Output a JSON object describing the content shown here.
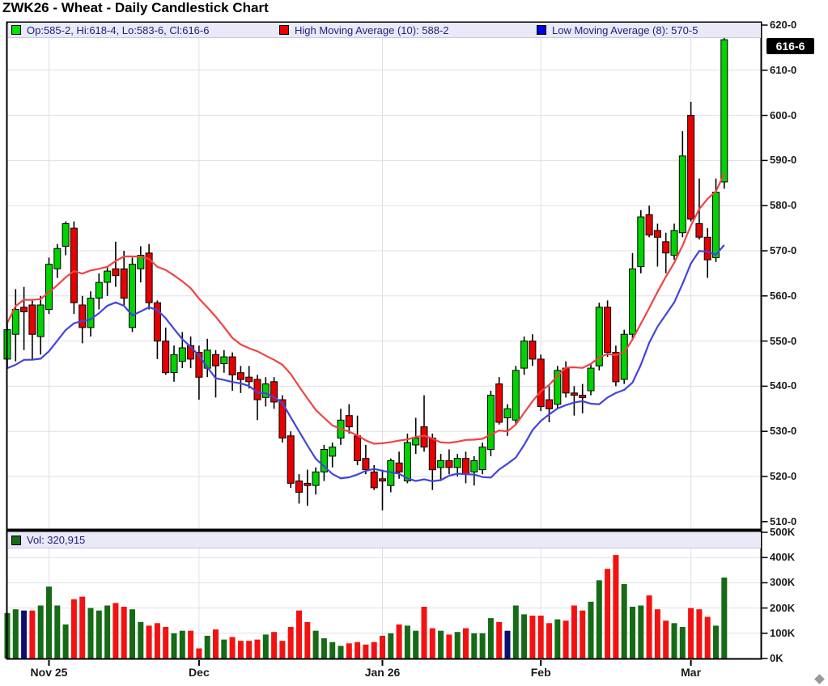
{
  "title": "ZWK26 - Wheat - Daily Candlestick Chart",
  "legend": {
    "ohlc": {
      "label": "Op:585-2, Hi:618-4, Lo:583-6, Cl:616-6",
      "color": "#00e000"
    },
    "high_ma": {
      "label": "High Moving Average (10): 588-2",
      "color": "#ee0000"
    },
    "low_ma": {
      "label": "Low Moving Average (8): 570-5",
      "color": "#0000dd"
    }
  },
  "volume_legend": {
    "label": "Vol: 320,915",
    "color": "#166b16"
  },
  "last_price_label": "616-6",
  "colors": {
    "candle_up": "#00d300",
    "candle_down": "#e60000",
    "candle_outline": "#000000",
    "vol_up": "#166b16",
    "vol_down": "#f31212",
    "vol_special": "#0d0d72",
    "ma_high": "#ef4444",
    "ma_low": "#4444dd",
    "grid": "#dfdfec",
    "frame": "#000000",
    "legend_bg": "#e9e9f8",
    "legend_text": "#21217a",
    "badge_bg": "#000000",
    "badge_text": "#ffffff",
    "axis_text": "#1a1a1a"
  },
  "chart_data": {
    "type": "candlestick",
    "instrument": "ZWK26 Wheat",
    "interval": "daily",
    "price_axis": {
      "min": 510,
      "max": 620,
      "step": 10,
      "labels": [
        "620-0",
        "610-0",
        "600-0",
        "590-0",
        "580-0",
        "570-0",
        "560-0",
        "550-0",
        "540-0",
        "530-0",
        "520-0",
        "510-0"
      ]
    },
    "volume_axis": {
      "max_k": 500,
      "step_k": 100,
      "labels": [
        "500K",
        "400K",
        "300K",
        "200K",
        "100K",
        "0K"
      ]
    },
    "x_axis": {
      "ticks": [
        {
          "label": "Nov 25",
          "index": 5
        },
        {
          "label": "Dec",
          "index": 23
        },
        {
          "label": "Jan 26",
          "index": 45
        },
        {
          "label": "Feb",
          "index": 64
        },
        {
          "label": "Mar",
          "index": 82
        }
      ]
    },
    "overlays": [
      {
        "name": "High Moving Average (10)",
        "source": "high",
        "period": 10,
        "value": "588-2"
      },
      {
        "name": "Low Moving Average (8)",
        "source": "low",
        "period": 8,
        "value": "570-5"
      }
    ],
    "last_candle": {
      "open": "585-2",
      "high": "618-4",
      "low": "583-6",
      "close": "616-6",
      "volume": 320915
    },
    "open": [
      546,
      551.5,
      557.5,
      558,
      551,
      557,
      566,
      571,
      575,
      558,
      553,
      559.5,
      563,
      566,
      566,
      553,
      566,
      569.5,
      558.5,
      550,
      543,
      545.5,
      549,
      547.5,
      544,
      547,
      545,
      546.5,
      543,
      542,
      541.5,
      537.5,
      541,
      537,
      529,
      519,
      518.5,
      518,
      521,
      524.5,
      528.5,
      533.5,
      529,
      524,
      521,
      519.5,
      518,
      523,
      519,
      527,
      531,
      528.5,
      522,
      523.5,
      522,
      524,
      521,
      521.5,
      526,
      540.5,
      533,
      532.5,
      544,
      550,
      546,
      537,
      536,
      544,
      538.5,
      538,
      539,
      544.5,
      557.5,
      547.5,
      541.5,
      551.5,
      566.5,
      578,
      574.5,
      572,
      569,
      574,
      600,
      576,
      573,
      568.5,
      585.25
    ],
    "high": [
      554,
      561.5,
      562,
      559,
      560,
      568.5,
      571.5,
      576.5,
      576.5,
      560,
      561,
      565,
      566.5,
      572,
      570,
      568.5,
      571,
      571.5,
      559,
      553,
      549,
      552,
      551,
      549,
      550.5,
      548,
      548,
      547.5,
      544.5,
      544.5,
      542.5,
      542,
      542,
      538,
      530,
      520.5,
      521.5,
      522,
      527,
      527.5,
      535,
      536,
      533.5,
      527,
      522.5,
      521.5,
      524,
      525.5,
      529.5,
      533,
      538,
      529.5,
      525,
      526,
      525,
      525.5,
      524.5,
      527.5,
      539,
      542,
      536,
      544.5,
      551,
      551.5,
      547,
      540,
      544.5,
      545.5,
      540,
      540.5,
      545,
      558.5,
      559,
      549,
      552.5,
      569.5,
      579,
      580,
      576,
      574,
      576,
      596.5,
      603,
      586,
      575,
      586,
      618.5
    ],
    "low": [
      544,
      545.5,
      548,
      546,
      547,
      556,
      564,
      569,
      556,
      549.5,
      551,
      557,
      560,
      562,
      558,
      552,
      563,
      557,
      546,
      542.5,
      541,
      544,
      544,
      537,
      542,
      537.5,
      543,
      539,
      538.5,
      539.5,
      532.5,
      535.5,
      535,
      527.5,
      517.5,
      514,
      513.5,
      516,
      519,
      522,
      527,
      529.5,
      522.5,
      520.5,
      517,
      512.5,
      516.5,
      519.5,
      518.5,
      525,
      525.5,
      517,
      519,
      520.5,
      520,
      518.5,
      518,
      520.5,
      524.5,
      531.5,
      529,
      531.5,
      542.5,
      544.5,
      534.5,
      532,
      535,
      537.5,
      533.5,
      534,
      538,
      543.5,
      546.5,
      540,
      540.5,
      550.5,
      565,
      573,
      566.5,
      565,
      568,
      573,
      576.5,
      572.5,
      564,
      567.5,
      583.75
    ],
    "close": [
      552.5,
      557,
      556.5,
      551.5,
      558,
      567,
      570.5,
      576,
      558.5,
      553,
      559.5,
      563,
      565.5,
      564.5,
      559.5,
      567,
      569,
      558.5,
      550,
      543,
      547,
      548.5,
      546,
      542,
      548,
      544.5,
      546.5,
      542.5,
      541.5,
      541,
      537,
      540.5,
      536.5,
      528.5,
      518.5,
      516.5,
      518,
      521,
      526,
      526.5,
      532.5,
      531,
      523.5,
      521.5,
      517.5,
      519,
      523.5,
      521,
      527.5,
      528.5,
      526.5,
      521.5,
      523.5,
      522,
      524,
      520.5,
      523.5,
      526.5,
      538,
      532,
      535,
      543.5,
      550,
      546,
      535.5,
      535,
      543.5,
      538.5,
      538,
      537.5,
      544,
      557.5,
      547.5,
      541,
      551.5,
      566,
      577.5,
      573.5,
      573,
      569.5,
      574.5,
      591,
      577,
      573,
      568,
      583,
      616.75
    ],
    "volume_k": [
      180,
      195,
      190,
      190,
      210,
      285,
      210,
      135,
      235,
      245,
      200,
      190,
      210,
      220,
      205,
      195,
      145,
      130,
      140,
      125,
      100,
      110,
      110,
      40,
      90,
      115,
      75,
      85,
      70,
      70,
      75,
      95,
      105,
      70,
      125,
      190,
      145,
      110,
      80,
      65,
      50,
      60,
      65,
      55,
      65,
      90,
      100,
      135,
      130,
      110,
      205,
      120,
      110,
      95,
      105,
      120,
      100,
      100,
      160,
      145,
      110,
      210,
      175,
      170,
      170,
      140,
      155,
      150,
      210,
      190,
      225,
      310,
      355,
      410,
      295,
      205,
      210,
      250,
      195,
      150,
      140,
      125,
      200,
      195,
      165,
      130,
      320.915
    ],
    "volume_special_indices": [
      2,
      60
    ]
  }
}
